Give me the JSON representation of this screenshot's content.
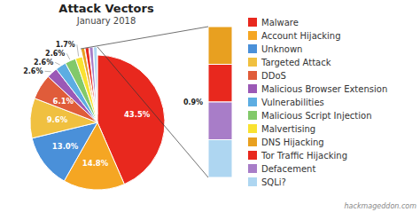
{
  "chart_data": {
    "type": "pie",
    "title": "Attack Vectors",
    "subtitle": "January 2018",
    "categories": [
      "Malware",
      "Account Hijacking",
      "Unknown",
      "Targeted Attack",
      "DDoS",
      "Malicious Browser Extension",
      "Vulnerabilities",
      "Malicious Script Injection",
      "Malvertising",
      "DNS Hijacking",
      "Tor Traffic Hijacking",
      "Defacement",
      "SQLi?"
    ],
    "values": [
      43.5,
      14.8,
      13.0,
      9.6,
      6.1,
      2.6,
      2.6,
      2.6,
      1.7,
      0.9,
      0.9,
      0.9,
      0.9
    ],
    "colors": [
      "#e8281e",
      "#f5a623",
      "#4a90d9",
      "#f0c040",
      "#e05c3a",
      "#9b59b6",
      "#5dade2",
      "#82c96a",
      "#f9e231",
      "#e8a020",
      "#e8281e",
      "#a87dc8",
      "#aed6f1"
    ],
    "data_labels": true,
    "value_labels": [
      "43.5%",
      "14.8%",
      "13.0%",
      "9.6%",
      "6.1%",
      "2.6%",
      "2.6%",
      "2.6%",
      "1.7%",
      null,
      null,
      null,
      null
    ],
    "annotations": [
      "0.9%",
      "hackmageddon.com"
    ],
    "legend": "right"
  }
}
